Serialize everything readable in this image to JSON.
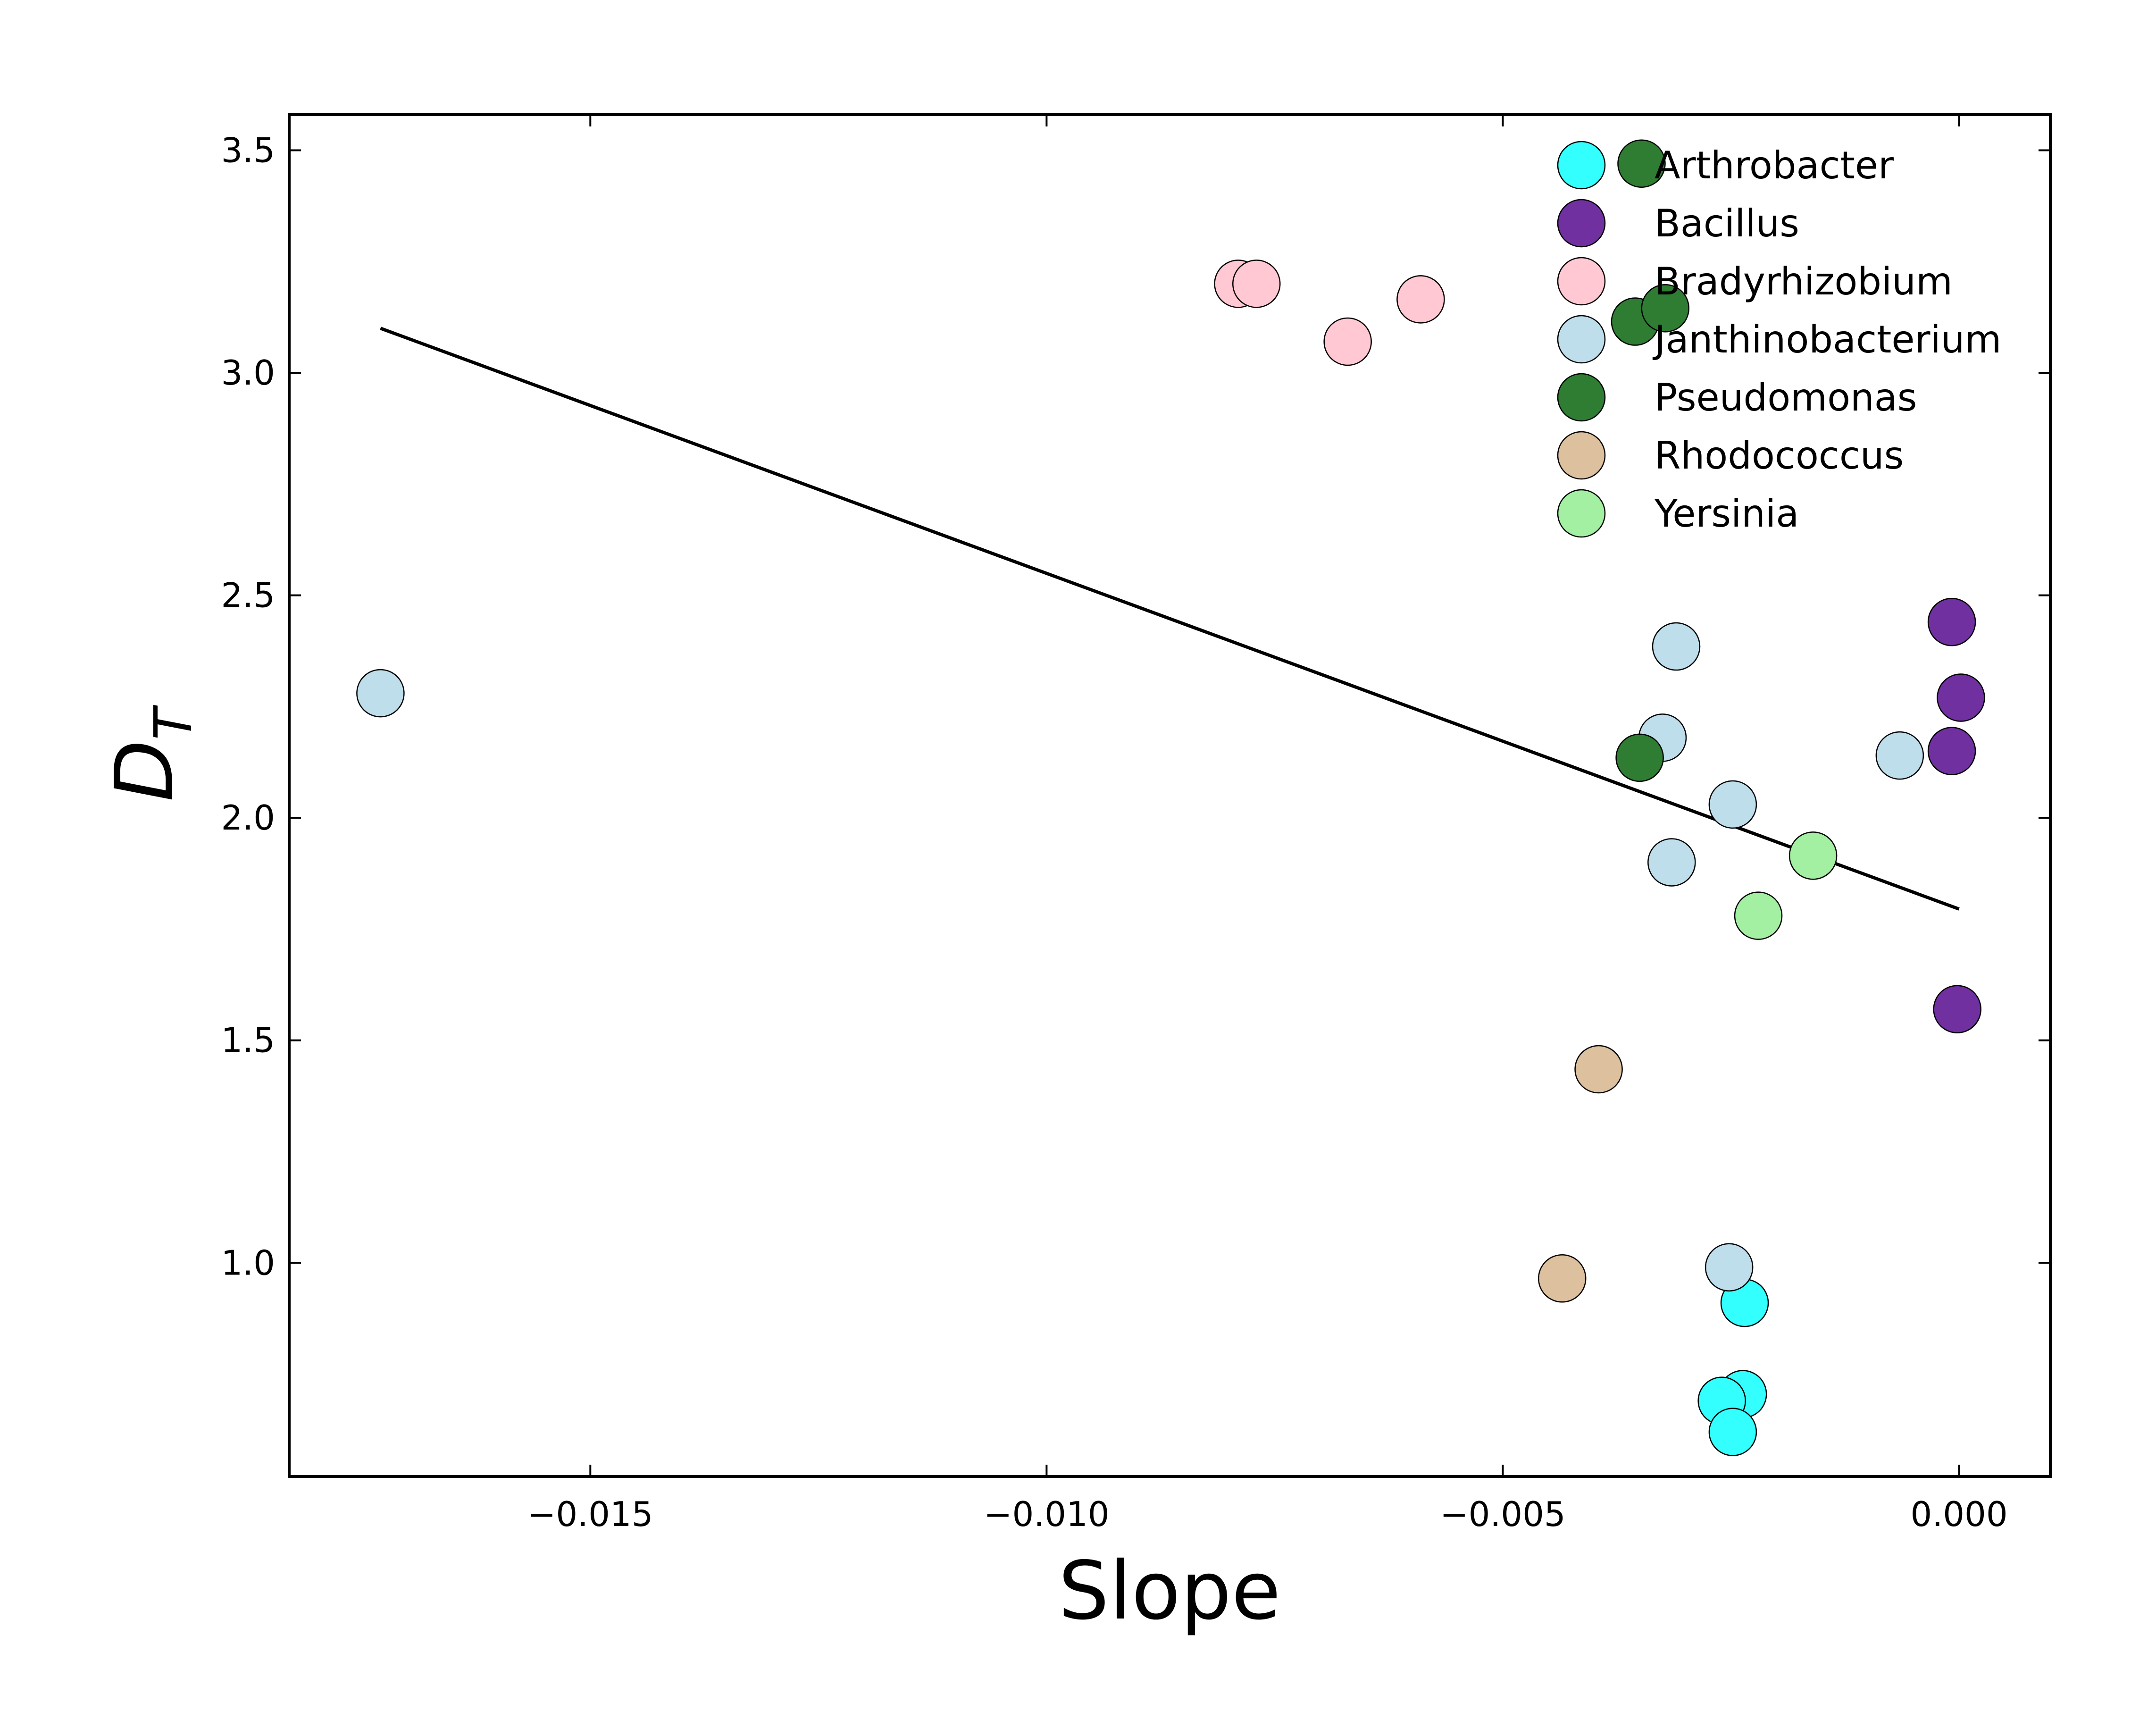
{
  "chart_data": {
    "type": "scatter",
    "xlabel": "Slope",
    "ylabel": {
      "base": "D",
      "sub": "T"
    },
    "xlim": [
      -0.0183,
      0.001
    ],
    "ylim": [
      0.52,
      3.58
    ],
    "xticks": [
      {
        "value": -0.015,
        "label": "−0.015"
      },
      {
        "value": -0.01,
        "label": "−0.010"
      },
      {
        "value": -0.005,
        "label": "−0.005"
      },
      {
        "value": 0.0,
        "label": "0.000"
      }
    ],
    "yticks": [
      {
        "value": 1.0,
        "label": "1.0"
      },
      {
        "value": 1.5,
        "label": "1.5"
      },
      {
        "value": 2.0,
        "label": "2.0"
      },
      {
        "value": 2.5,
        "label": "2.5"
      },
      {
        "value": 3.0,
        "label": "3.0"
      },
      {
        "value": 3.5,
        "label": "3.5"
      }
    ],
    "grid": false,
    "legend_position": "top-right",
    "series": [
      {
        "name": "Arthrobacter",
        "color": "#33ffff",
        "points": [
          [
            -0.00235,
            0.91
          ],
          [
            -0.00237,
            0.705
          ],
          [
            -0.0026,
            0.69
          ],
          [
            -0.00248,
            0.62
          ]
        ]
      },
      {
        "name": "Bacillus",
        "color": "#7030a0",
        "points": [
          [
            -8e-05,
            2.44
          ],
          [
            2e-05,
            2.27
          ],
          [
            -8e-05,
            2.15
          ],
          [
            -2e-05,
            1.57
          ]
        ]
      },
      {
        "name": "Bradyrhizobium",
        "color": "#ffc8d2",
        "points": [
          [
            -0.0079,
            3.2
          ],
          [
            -0.0077,
            3.2
          ],
          [
            -0.0067,
            3.07
          ],
          [
            -0.0059,
            3.165
          ]
        ]
      },
      {
        "name": "Janthinobacterium",
        "color": "#bddeea",
        "points": [
          [
            -0.0173,
            2.28
          ],
          [
            -0.0031,
            2.385
          ],
          [
            -0.00325,
            2.18
          ],
          [
            -0.00248,
            2.03
          ],
          [
            -0.00315,
            1.9
          ],
          [
            -0.00065,
            2.14
          ],
          [
            -0.00252,
            0.99
          ]
        ]
      },
      {
        "name": "Pseudomonas",
        "color": "#2e7d32",
        "points": [
          [
            -0.00348,
            3.47
          ],
          [
            -0.00355,
            3.115
          ],
          [
            -0.00322,
            3.145
          ],
          [
            -0.0035,
            2.135
          ]
        ]
      },
      {
        "name": "Rhodococcus",
        "color": "#ddc09d",
        "points": [
          [
            -0.00395,
            1.435
          ],
          [
            -0.00435,
            0.965
          ]
        ]
      },
      {
        "name": "Yersinia",
        "color": "#a3f0a3",
        "points": [
          [
            -0.0016,
            1.915
          ],
          [
            -0.0022,
            1.78
          ]
        ]
      }
    ],
    "trendline": {
      "x": [
        -0.0173,
        0.0
      ],
      "y": [
        3.1,
        1.795
      ],
      "color": "#000000"
    }
  }
}
